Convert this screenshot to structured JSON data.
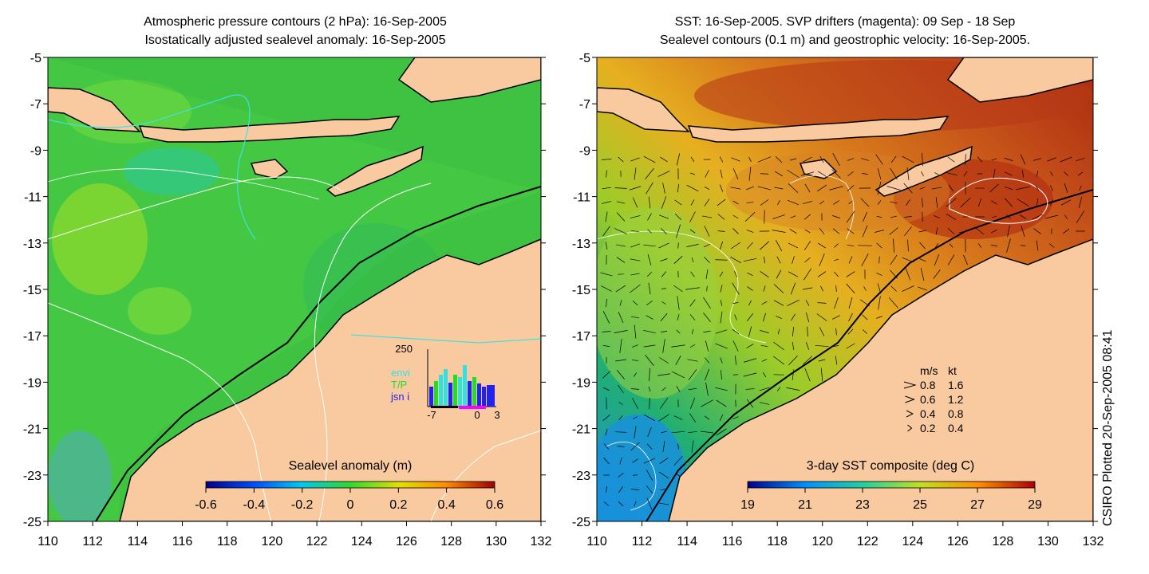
{
  "left_panel": {
    "title_line1": "Atmospheric pressure contours (2 hPa): 16-Sep-2005",
    "title_line2": "Isostatically adjusted sealevel anomaly: 16-Sep-2005",
    "colorbar": {
      "label": "Sealevel anomaly (m)",
      "ticks": [
        "-0.6",
        "-0.4",
        "-0.2",
        "0",
        "0.2",
        "0.4",
        "0.6"
      ],
      "range": [
        -0.6,
        0.6
      ]
    },
    "inset": {
      "ymax_label": "250",
      "legend": [
        {
          "label": "",
          "color": "#ffff00"
        },
        {
          "label": "envi",
          "color": "#33e0e0"
        },
        {
          "label": "T/P",
          "color": "#22dd22"
        },
        {
          "label": "jsn i",
          "color": "#2222ee"
        }
      ],
      "xticks": [
        "-7",
        "0",
        "3"
      ]
    }
  },
  "right_panel": {
    "title_line1": "SST: 16-Sep-2005. SVP drifters (magenta): 09 Sep - 18 Sep",
    "title_line2": "Sealevel contours (0.1 m) and geostrophic velocity: 16-Sep-2005.",
    "colorbar": {
      "label": "3-day SST composite (deg C)",
      "ticks": [
        "19",
        "21",
        "23",
        "25",
        "27",
        "29"
      ],
      "range": [
        19,
        29
      ]
    },
    "velocity_legend": {
      "header_ms": "m/s",
      "header_kt": "kt",
      "rows": [
        {
          "ms": "0.8",
          "kt": "1.6"
        },
        {
          "ms": "0.6",
          "kt": "1.2"
        },
        {
          "ms": "0.4",
          "kt": "0.8"
        },
        {
          "ms": "0.2",
          "kt": "0.4"
        }
      ]
    }
  },
  "axes": {
    "lat_ticks": [
      "-5",
      "-7",
      "-9",
      "-11",
      "-13",
      "-15",
      "-17",
      "-19",
      "-21",
      "-23",
      "-25"
    ],
    "lon_ticks": [
      "110",
      "112",
      "114",
      "116",
      "118",
      "120",
      "122",
      "124",
      "126",
      "128",
      "130",
      "132"
    ],
    "lat_range": [
      -25,
      -5
    ],
    "lon_range": [
      110,
      132
    ]
  },
  "credit": "CSIRO Plotted 20-Sep-2005 08:41",
  "colors": {
    "land": "#f9caa0",
    "sea_left": "#3cc83c",
    "sea_right_warm": "#c8501e",
    "sea_right_mid": "#e8a020",
    "sea_right_cool": "#22aa88"
  }
}
